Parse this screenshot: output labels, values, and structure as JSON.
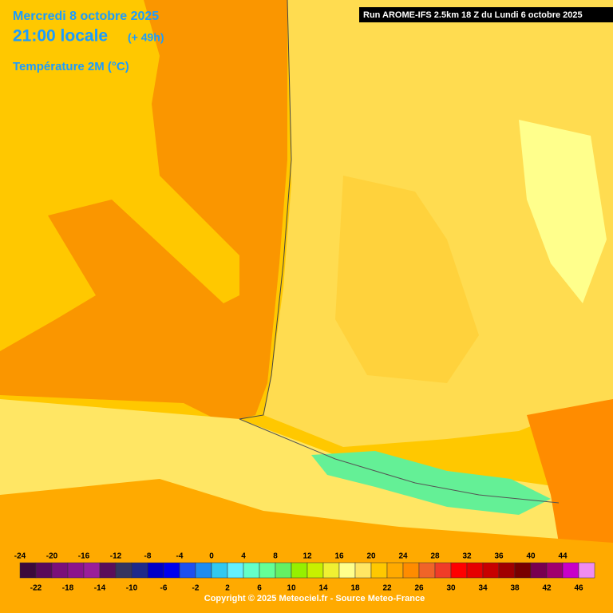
{
  "header": {
    "date": "Mercredi 8 octobre 2025",
    "time": "21:00 locale",
    "offset": "(+ 49h)",
    "parameter": "Température 2M (°C)",
    "run": "Run AROME-IFS 2.5km 18 Z du Lundi 6 octobre 2025"
  },
  "legend": {
    "labels": [
      -24,
      -22,
      -20,
      -18,
      -16,
      -14,
      -12,
      -10,
      -8,
      -6,
      -4,
      -2,
      0,
      2,
      4,
      6,
      8,
      10,
      12,
      14,
      16,
      18,
      20,
      22,
      24,
      26,
      28,
      30,
      32,
      34,
      36,
      38,
      40,
      42,
      44,
      46
    ],
    "colors": [
      "#3c0a3c",
      "#5a0a5a",
      "#7a107a",
      "#8c148c",
      "#9a1e9a",
      "#5a0f5a",
      "#35355f",
      "#1e2a8a",
      "#0000c8",
      "#0000f0",
      "#1e50f0",
      "#1e8cf0",
      "#32c8f0",
      "#64f0ff",
      "#64ffc8",
      "#64ff96",
      "#64f064",
      "#96f000",
      "#c8f000",
      "#f0f032",
      "#ffff8c",
      "#ffe664",
      "#ffc800",
      "#ffaa00",
      "#ff8c00",
      "#f06428",
      "#f03c28",
      "#ff0000",
      "#e60000",
      "#c80000",
      "#a00000",
      "#780000",
      "#780050",
      "#a0006e",
      "#c800c8",
      "#f08cf0"
    ]
  },
  "footer": {
    "copyright": "Copyright © 2025 Meteociel.fr - Source Meteo-France"
  }
}
